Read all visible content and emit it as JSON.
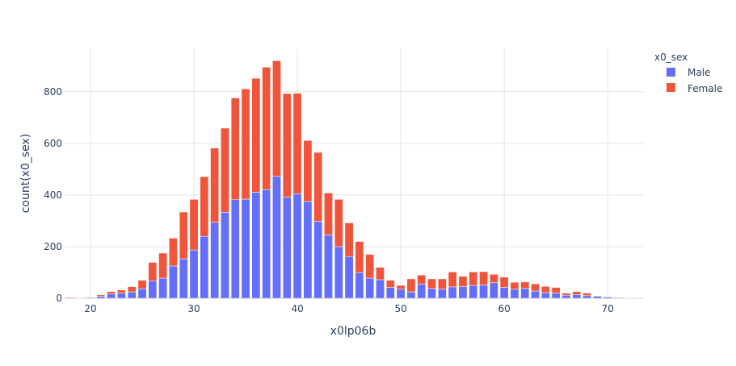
{
  "chart_data": {
    "type": "bar",
    "barmode": "stack",
    "x": [
      18,
      19,
      20,
      21,
      22,
      23,
      24,
      25,
      26,
      27,
      28,
      29,
      30,
      31,
      32,
      33,
      34,
      35,
      36,
      37,
      38,
      39,
      40,
      41,
      42,
      43,
      44,
      45,
      46,
      47,
      48,
      49,
      50,
      51,
      52,
      53,
      54,
      55,
      56,
      57,
      58,
      59,
      60,
      61,
      62,
      63,
      64,
      65,
      66,
      67,
      68,
      69,
      70,
      71,
      72,
      73
    ],
    "series": [
      {
        "name": "Male",
        "color": "#636efa",
        "values": [
          1,
          1,
          3,
          8,
          17,
          20,
          25,
          37,
          68,
          78,
          125,
          153,
          187,
          240,
          294,
          333,
          382,
          384,
          411,
          421,
          472,
          392,
          405,
          375,
          298,
          245,
          200,
          162,
          100,
          78,
          72,
          42,
          35,
          25,
          55,
          38,
          35,
          44,
          45,
          50,
          52,
          60,
          42,
          35,
          38,
          28,
          22,
          20,
          12,
          14,
          10,
          8,
          5,
          3,
          2,
          1
        ]
      },
      {
        "name": "Female",
        "color": "#ef553b",
        "values": [
          3,
          1,
          2,
          5,
          9,
          12,
          20,
          33,
          71,
          97,
          108,
          181,
          196,
          231,
          288,
          326,
          394,
          427,
          441,
          474,
          448,
          401,
          389,
          236,
          267,
          163,
          183,
          130,
          120,
          92,
          48,
          28,
          15,
          50,
          35,
          37,
          40,
          58,
          40,
          52,
          51,
          33,
          40,
          27,
          25,
          28,
          24,
          22,
          8,
          12,
          10,
          2,
          2,
          1,
          1,
          1
        ]
      }
    ],
    "title": "",
    "xlabel": "x0lp06b",
    "ylabel": "count(x0_sex)",
    "legend_title": "x0_sex",
    "legend_position": "top-right",
    "xlim": [
      17.5,
      73.5
    ],
    "ylim": [
      0,
      968
    ],
    "x_ticks": [
      20,
      30,
      40,
      50,
      60,
      70
    ],
    "y_ticks": [
      0,
      200,
      400,
      600,
      800
    ],
    "grid": true
  }
}
